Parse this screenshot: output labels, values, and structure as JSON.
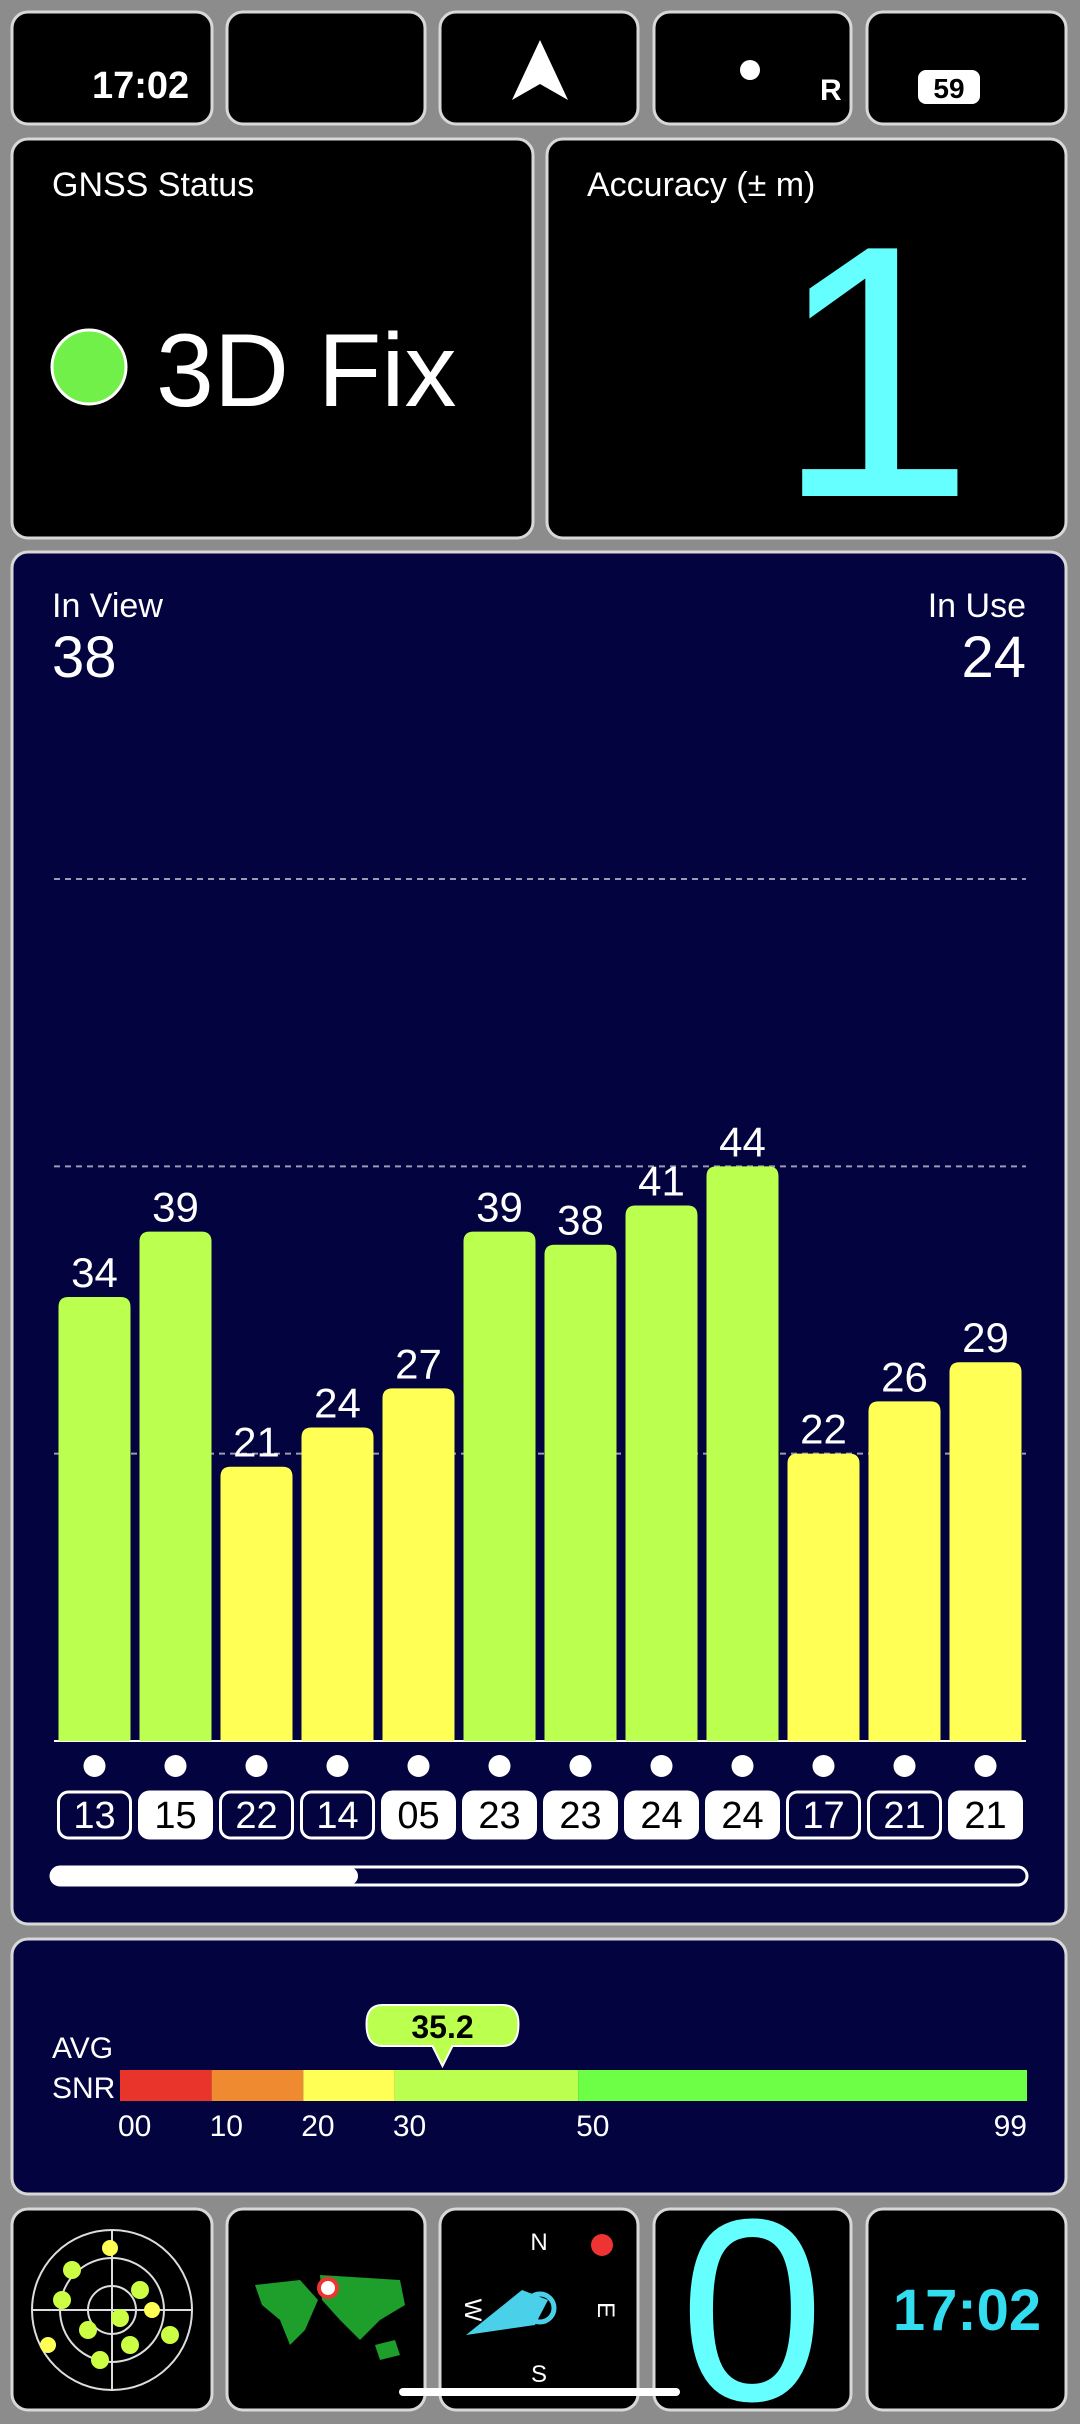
{
  "status_bar": {
    "time": "17:02",
    "network": "R",
    "battery": "59"
  },
  "gnss_status": {
    "label": "GNSS Status",
    "value": "3D Fix"
  },
  "accuracy": {
    "label": "Accuracy (± m)",
    "value": 1
  },
  "satellites": {
    "in_view_label": "In View",
    "in_view": 38,
    "in_use_label": "In Use",
    "in_use": 24
  },
  "chart_data": {
    "type": "bar",
    "categories": [
      "13",
      "15",
      "22",
      "14",
      "05",
      "23",
      "23",
      "24",
      "24",
      "17",
      "21",
      "21"
    ],
    "values": [
      34,
      39,
      21,
      24,
      27,
      39,
      38,
      41,
      44,
      22,
      26,
      29
    ],
    "colors": [
      "#bbff4f",
      "#bbff4f",
      "#ffff55",
      "#ffff55",
      "#ffff55",
      "#bbff4f",
      "#bbff4f",
      "#bbff4f",
      "#bbff4f",
      "#ffff55",
      "#ffff55",
      "#ffff55"
    ],
    "used": [
      false,
      true,
      false,
      false,
      true,
      true,
      true,
      true,
      true,
      false,
      false,
      true
    ],
    "ylim": [
      0,
      66
    ]
  },
  "snr": {
    "label_1": "AVG",
    "label_2": "SNR",
    "average": 35.2,
    "xlim": [
      0,
      99
    ],
    "xticks": [
      {
        "value": 0,
        "label": "00"
      },
      10,
      20,
      30,
      50,
      99
    ],
    "segment_colors": [
      "#e8342a",
      "#f08a30",
      "#ffff55",
      "#bbff4f",
      "#6dff45"
    ]
  },
  "widgets": {
    "compass": {
      "n": "N",
      "e": "E",
      "s": "S",
      "w": "W"
    },
    "speed": 0,
    "clock": "17:02"
  }
}
